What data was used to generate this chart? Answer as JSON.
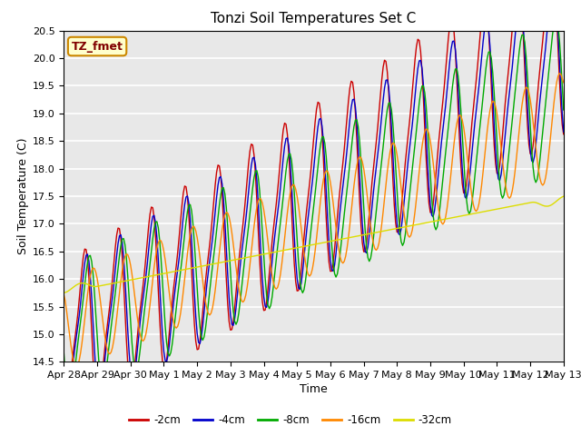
{
  "title": "Tonzi Soil Temperatures Set C",
  "xlabel": "Time",
  "ylabel": "Soil Temperature (C)",
  "ylim": [
    14.5,
    20.5
  ],
  "annotation_text": "TZ_fmet",
  "legend_labels": [
    "-2cm",
    "-4cm",
    "-8cm",
    "-16cm",
    "-32cm"
  ],
  "line_colors": [
    "#cc0000",
    "#0000cc",
    "#00aa00",
    "#ff8800",
    "#dddd00"
  ],
  "x_tick_labels": [
    "Apr 28",
    "Apr 29",
    "Apr 30",
    "May 1",
    "May 2",
    "May 3",
    "May 4",
    "May 5",
    "May 6",
    "May 7",
    "May 8",
    "May 9",
    "May 10",
    "May 11",
    "May 12",
    "May 13"
  ],
  "background_color": "#e8e8e8",
  "title_fontsize": 11,
  "axis_label_fontsize": 9,
  "tick_fontsize": 8
}
